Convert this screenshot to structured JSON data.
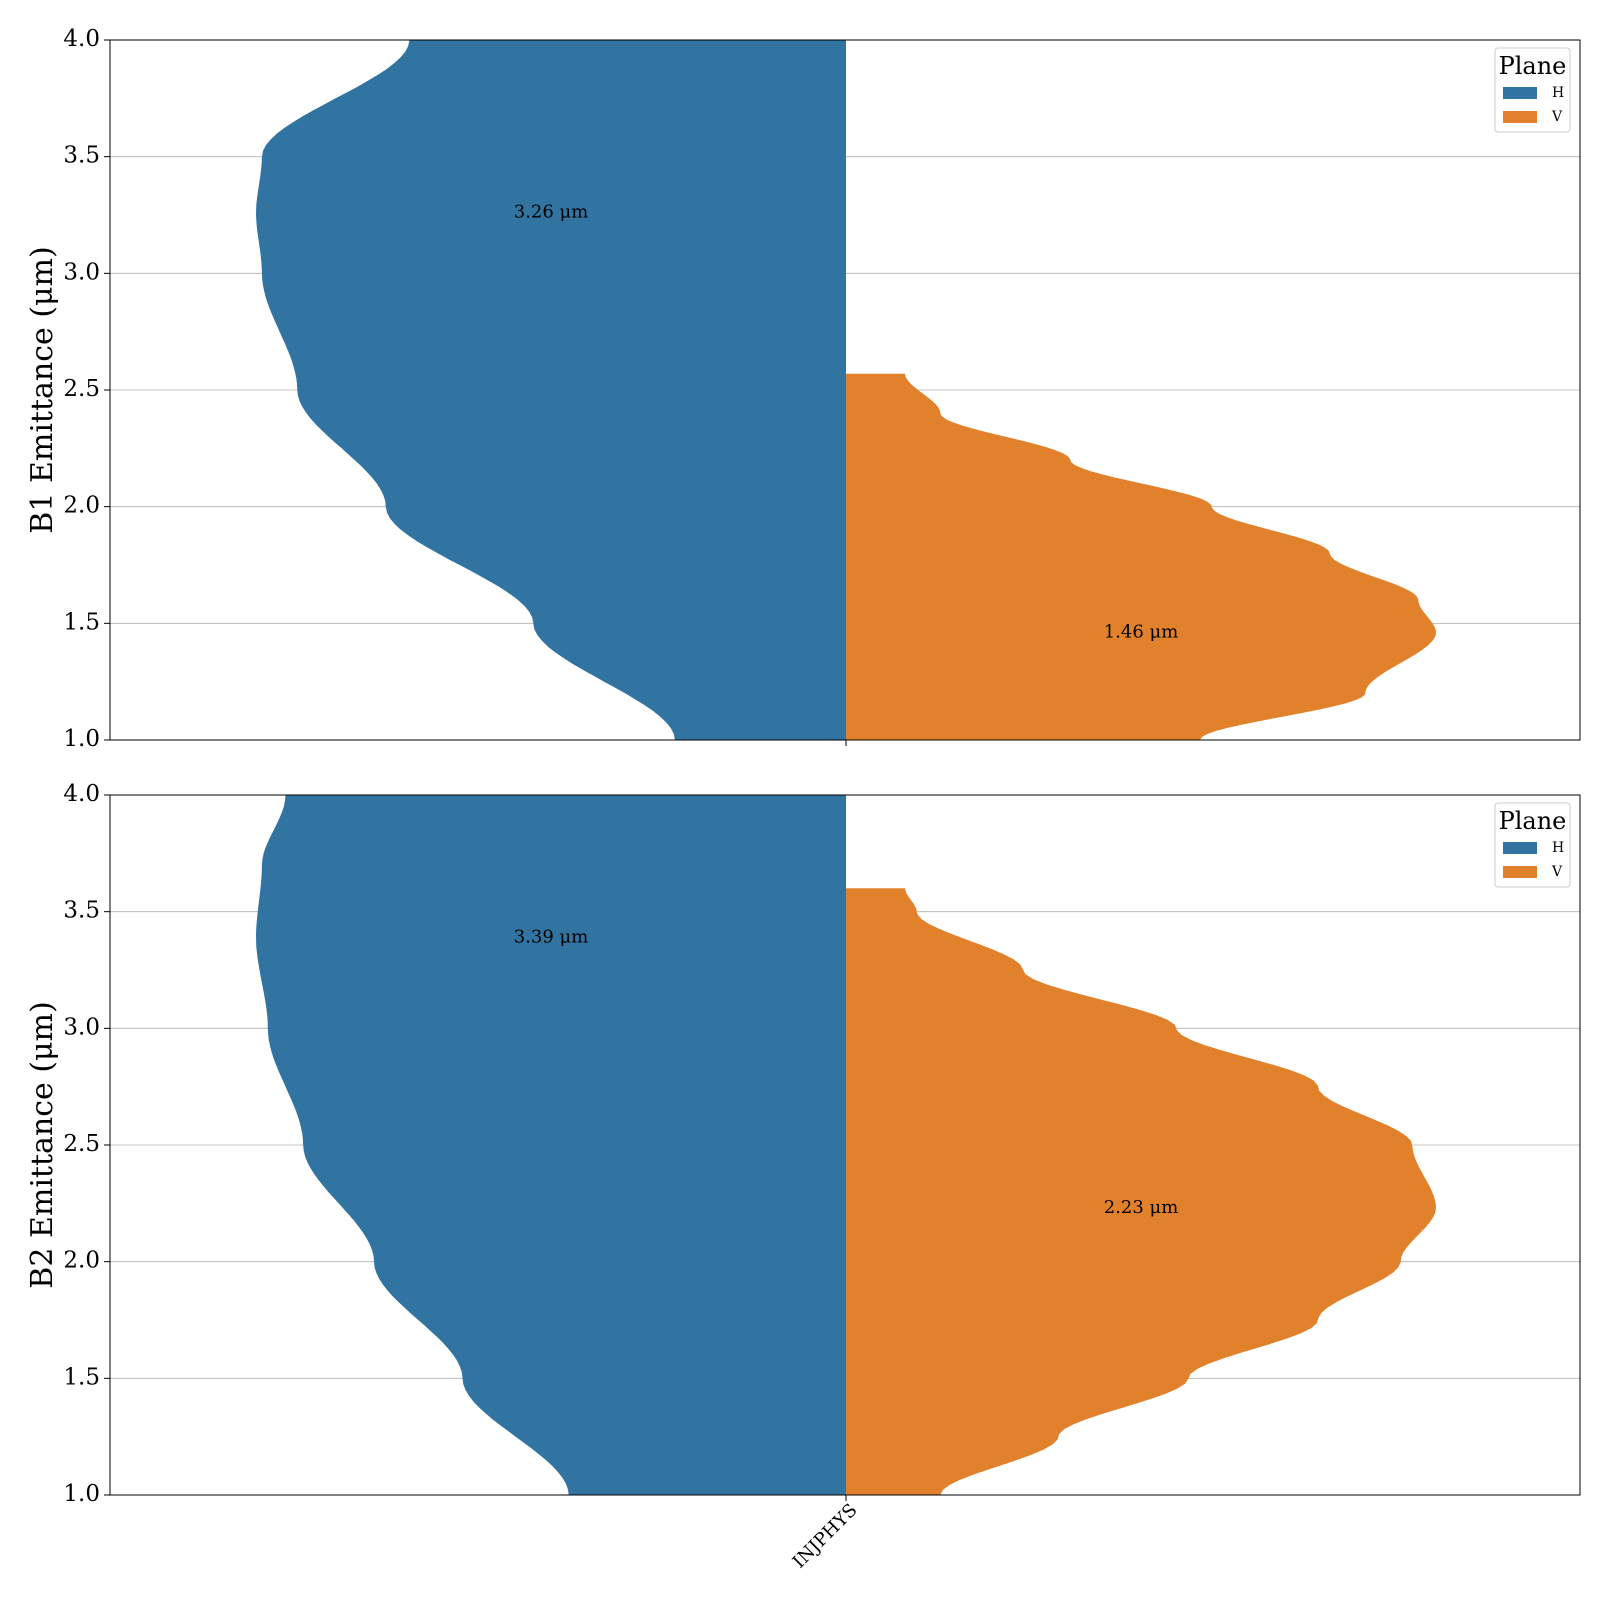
{
  "chart_data": [
    {
      "type": "violin",
      "ylabel": "B1 Emittance (μm)",
      "ylim": [
        1.0,
        4.0
      ],
      "yticks": [
        "1.0",
        "1.5",
        "2.0",
        "2.5",
        "3.0",
        "3.5",
        "4.0"
      ],
      "categories": [
        "INJPHYS"
      ],
      "grid": "y",
      "legend": {
        "title": "Plane",
        "position": "top-right",
        "entries": [
          "H",
          "V"
        ]
      },
      "series": [
        {
          "name": "H",
          "color": "#3274a1",
          "side": "left",
          "median": 3.26,
          "annotation": "3.26 μm",
          "profile": [
            [
              1.0,
              0.29
            ],
            [
              1.5,
              0.53
            ],
            [
              2.0,
              0.78
            ],
            [
              2.5,
              0.93
            ],
            [
              3.0,
              0.99
            ],
            [
              3.26,
              1.0
            ],
            [
              3.5,
              0.99
            ],
            [
              4.0,
              0.74
            ]
          ]
        },
        {
          "name": "V",
          "color": "#e1812c",
          "side": "right",
          "median": 1.46,
          "annotation": "1.46 μm",
          "profile": [
            [
              1.0,
              0.6
            ],
            [
              1.2,
              0.88
            ],
            [
              1.46,
              1.0
            ],
            [
              1.6,
              0.97
            ],
            [
              1.8,
              0.82
            ],
            [
              2.0,
              0.62
            ],
            [
              2.2,
              0.38
            ],
            [
              2.4,
              0.16
            ],
            [
              2.57,
              0.1
            ]
          ]
        }
      ]
    },
    {
      "type": "violin",
      "ylabel": "B2 Emittance (μm)",
      "ylim": [
        1.0,
        4.0
      ],
      "yticks": [
        "1.0",
        "1.5",
        "2.0",
        "2.5",
        "3.0",
        "3.5",
        "4.0"
      ],
      "categories": [
        "INJPHYS"
      ],
      "grid": "y",
      "legend": {
        "title": "Plane",
        "position": "top-right",
        "entries": [
          "H",
          "V"
        ]
      },
      "series": [
        {
          "name": "H",
          "color": "#3274a1",
          "side": "left",
          "median": 3.39,
          "annotation": "3.39 μm",
          "profile": [
            [
              1.0,
              0.47
            ],
            [
              1.5,
              0.65
            ],
            [
              2.0,
              0.8
            ],
            [
              2.5,
              0.92
            ],
            [
              3.0,
              0.98
            ],
            [
              3.39,
              1.0
            ],
            [
              3.7,
              0.99
            ],
            [
              4.0,
              0.95
            ]
          ]
        },
        {
          "name": "V",
          "color": "#e1812c",
          "side": "right",
          "median": 2.23,
          "annotation": "2.23 μm",
          "profile": [
            [
              1.0,
              0.16
            ],
            [
              1.25,
              0.36
            ],
            [
              1.5,
              0.58
            ],
            [
              1.75,
              0.8
            ],
            [
              2.0,
              0.94
            ],
            [
              2.23,
              1.0
            ],
            [
              2.5,
              0.96
            ],
            [
              2.75,
              0.8
            ],
            [
              3.0,
              0.56
            ],
            [
              3.25,
              0.3
            ],
            [
              3.5,
              0.12
            ],
            [
              3.6,
              0.1
            ]
          ]
        }
      ]
    }
  ]
}
